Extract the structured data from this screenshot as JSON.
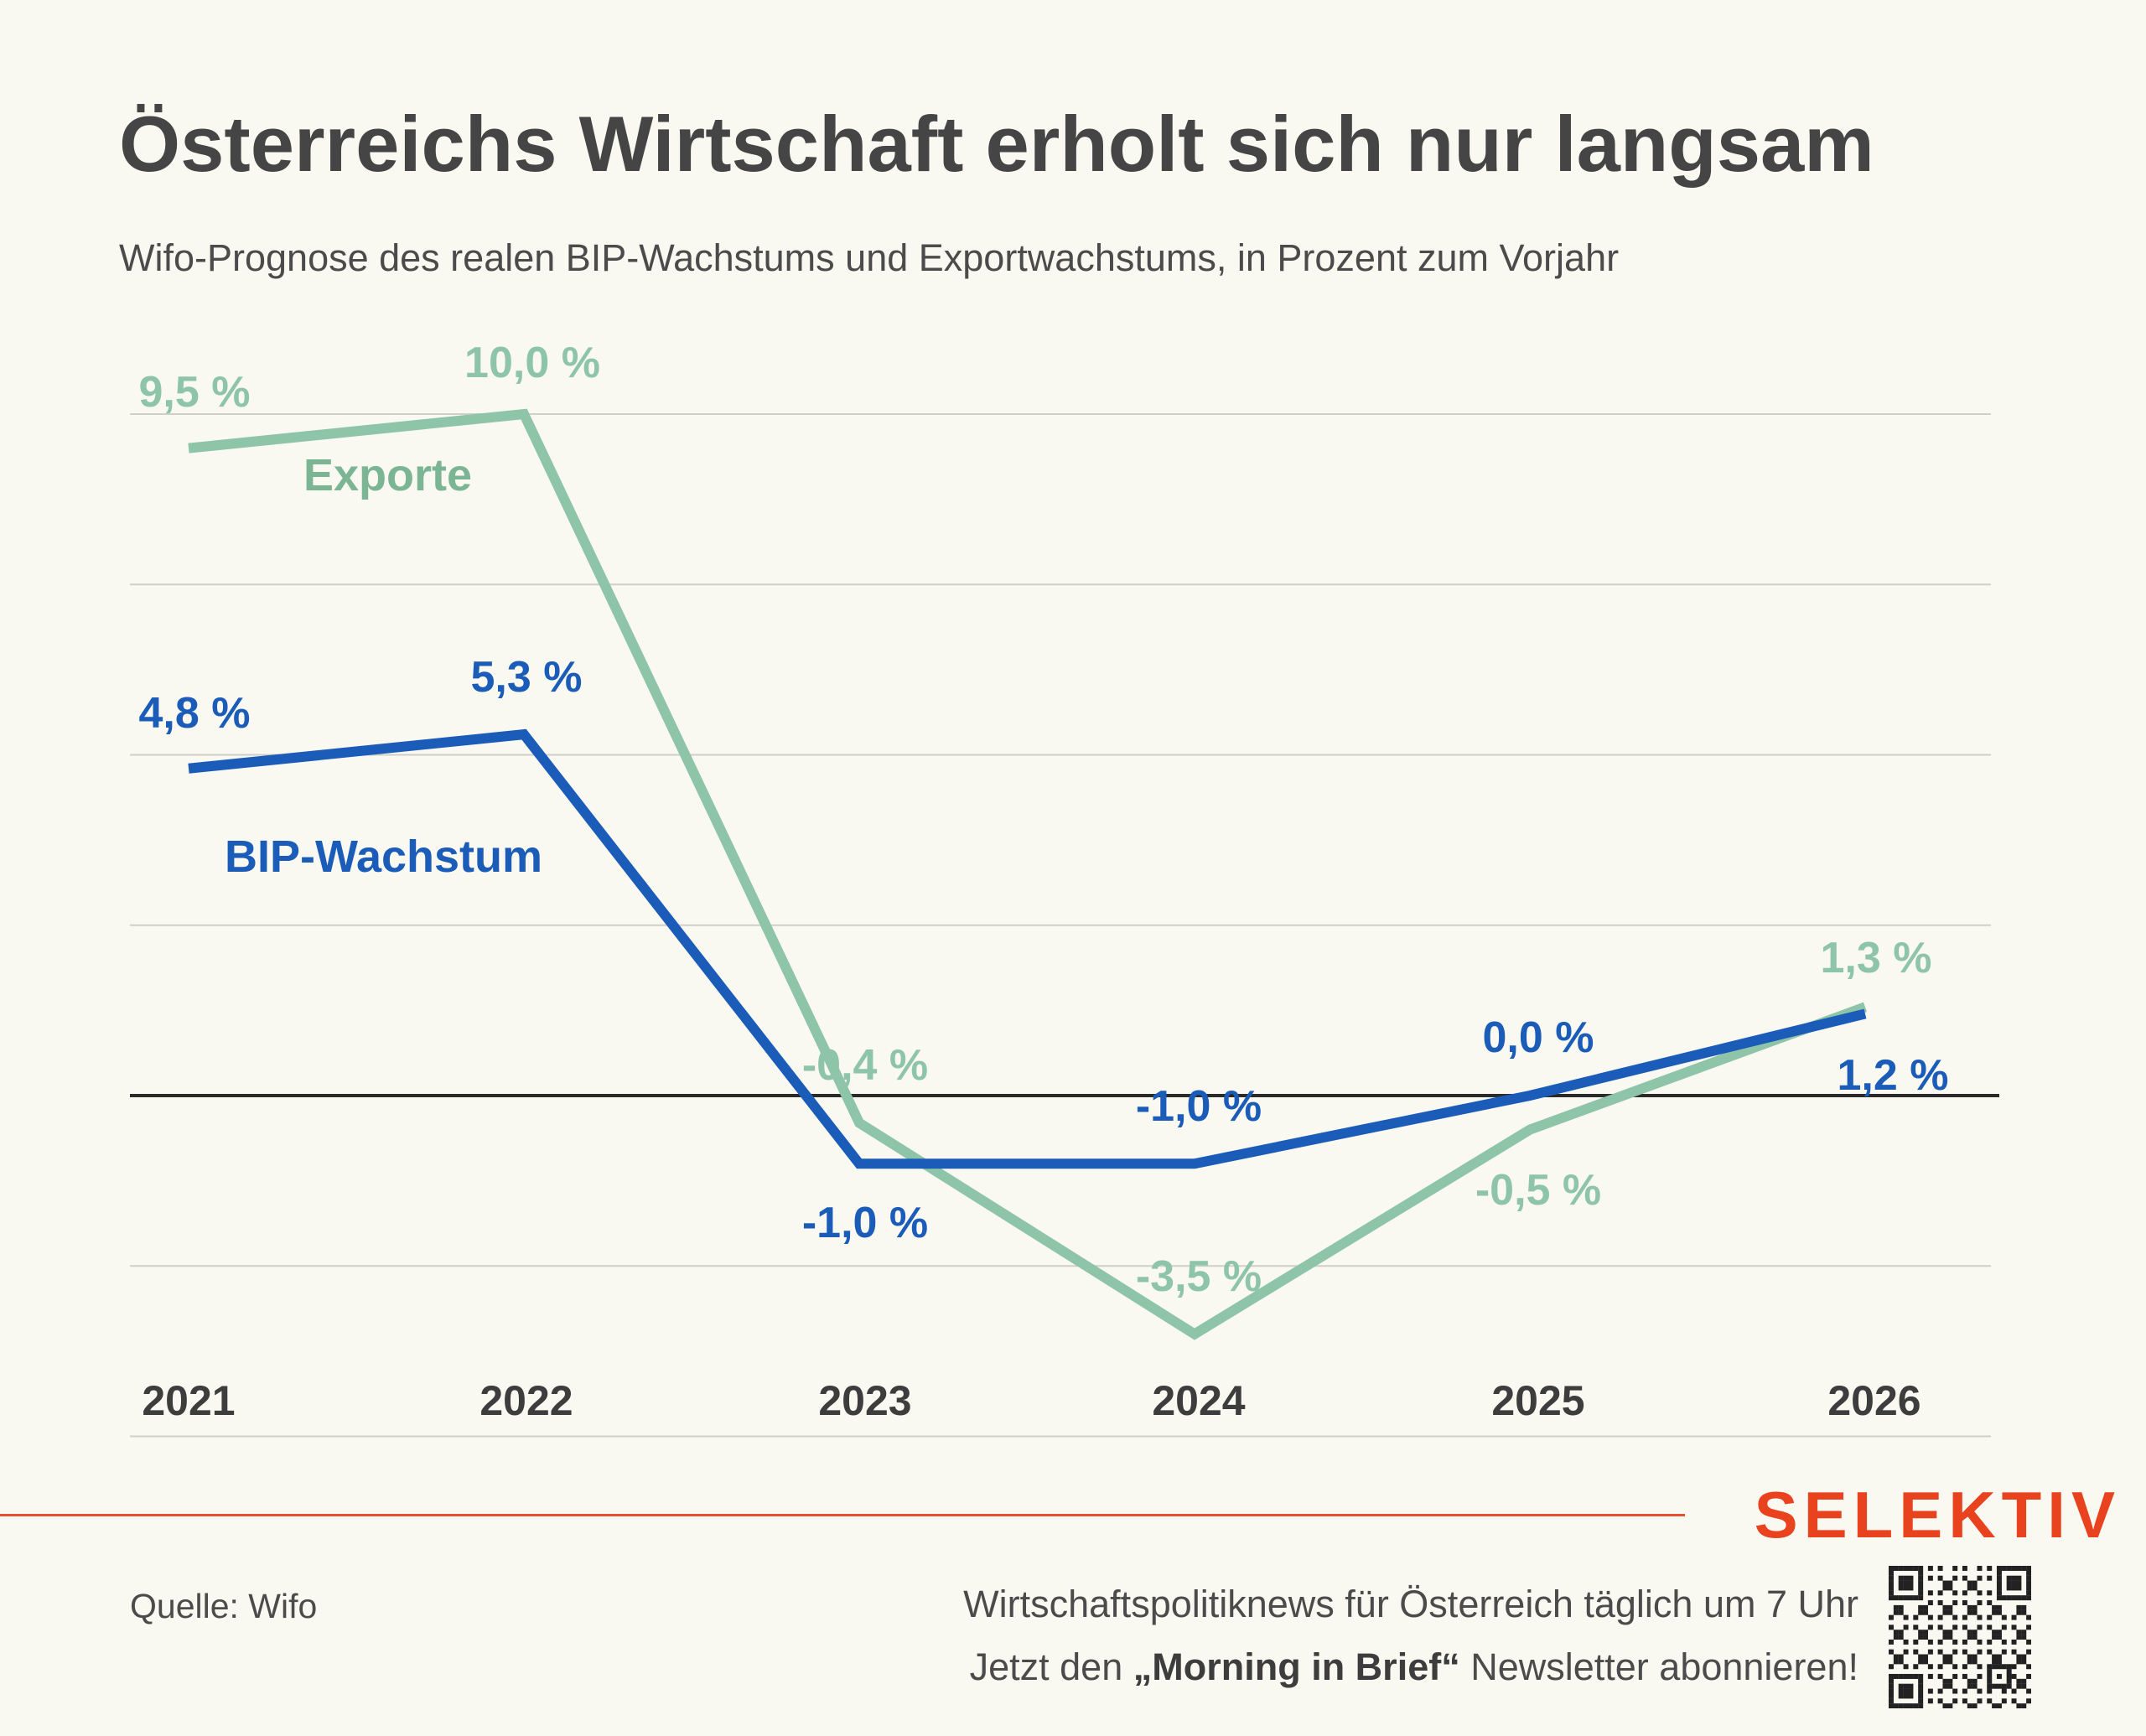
{
  "header": {
    "title": "Österreichs Wirtschaft erholt sich nur langsam",
    "subtitle": "Wifo-Prognose des realen BIP-Wachstums und Exportwachstums, in Prozent zum Vorjahr"
  },
  "chart_data": {
    "type": "line",
    "categories": [
      "2021",
      "2022",
      "2023",
      "2024",
      "2025",
      "2026"
    ],
    "ylim": [
      -5,
      10
    ],
    "grid": true,
    "series": [
      {
        "name": "Exporte",
        "color": "#8ec4a8",
        "values": [
          9.5,
          10.0,
          -0.4,
          -3.5,
          -0.5,
          1.3
        ],
        "labels": [
          "9,5 %",
          "10,0 %",
          "-0,4 %",
          "-3,5 %",
          "-0,5 %",
          "1,3 %"
        ]
      },
      {
        "name": "BIP-Wachstum",
        "color": "#1a5cb8",
        "values": [
          4.8,
          5.3,
          -1.0,
          -1.0,
          0.0,
          1.2
        ],
        "labels": [
          "4,8 %",
          "5,3 %",
          "-1,0 %",
          "-1,0 %",
          "0,0 %",
          "1,2 %"
        ]
      }
    ]
  },
  "footer": {
    "brand": "SELEKTIV",
    "source": "Quelle: Wifo",
    "promo_line1": "Wirtschaftspolitiknews für Österreich täglich um 7 Uhr",
    "promo_line2_pre": "Jetzt den ",
    "promo_line2_bold": "„Morning in Brief“",
    "promo_line2_post": " Newsletter abonnieren!",
    "qr_icon": "qr-code-icon"
  }
}
